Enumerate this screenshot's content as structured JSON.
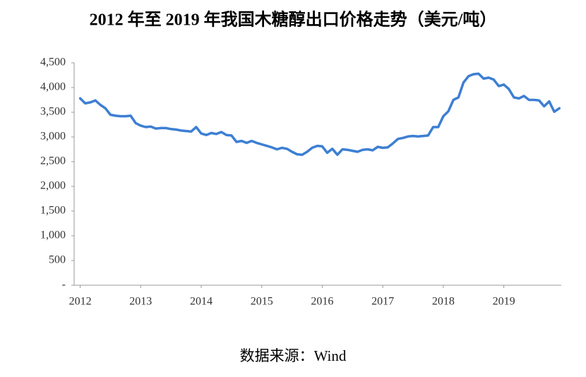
{
  "chart_data": {
    "type": "line",
    "title": "2012 年至 2019 年我国木糖醇出口价格走势（美元/吨）",
    "source": "数据来源：Wind",
    "x": [
      2012,
      2012.083,
      2012.167,
      2012.25,
      2012.333,
      2012.417,
      2012.5,
      2012.583,
      2012.667,
      2012.75,
      2012.833,
      2012.917,
      2013,
      2013.083,
      2013.167,
      2013.25,
      2013.333,
      2013.417,
      2013.5,
      2013.583,
      2013.667,
      2013.75,
      2013.833,
      2013.917,
      2014,
      2014.083,
      2014.167,
      2014.25,
      2014.333,
      2014.417,
      2014.5,
      2014.583,
      2014.667,
      2014.75,
      2014.833,
      2014.917,
      2015,
      2015.083,
      2015.167,
      2015.25,
      2015.333,
      2015.417,
      2015.5,
      2015.583,
      2015.667,
      2015.75,
      2015.833,
      2015.917,
      2016,
      2016.083,
      2016.167,
      2016.25,
      2016.333,
      2016.417,
      2016.5,
      2016.583,
      2016.667,
      2016.75,
      2016.833,
      2016.917,
      2017,
      2017.083,
      2017.167,
      2017.25,
      2017.333,
      2017.417,
      2017.5,
      2017.583,
      2017.667,
      2017.75,
      2017.833,
      2017.917,
      2018,
      2018.083,
      2018.167,
      2018.25,
      2018.333,
      2018.417,
      2018.5,
      2018.583,
      2018.667,
      2018.75,
      2018.833,
      2018.917,
      2019,
      2019.083,
      2019.167,
      2019.25,
      2019.333,
      2019.417,
      2019.5,
      2019.583,
      2019.667,
      2019.75,
      2019.833,
      2019.917
    ],
    "values": [
      3780,
      3680,
      3700,
      3740,
      3650,
      3580,
      3450,
      3430,
      3420,
      3420,
      3430,
      3280,
      3230,
      3200,
      3210,
      3170,
      3180,
      3180,
      3160,
      3150,
      3130,
      3120,
      3110,
      3200,
      3070,
      3040,
      3080,
      3060,
      3100,
      3040,
      3030,
      2900,
      2920,
      2880,
      2920,
      2880,
      2850,
      2820,
      2790,
      2750,
      2780,
      2760,
      2700,
      2650,
      2640,
      2700,
      2780,
      2820,
      2810,
      2680,
      2760,
      2640,
      2750,
      2740,
      2720,
      2700,
      2740,
      2750,
      2730,
      2800,
      2780,
      2790,
      2870,
      2960,
      2980,
      3010,
      3020,
      3010,
      3020,
      3030,
      3200,
      3200,
      3420,
      3520,
      3750,
      3800,
      4100,
      4230,
      4270,
      4280,
      4180,
      4200,
      4160,
      4030,
      4060,
      3970,
      3800,
      3780,
      3830,
      3750,
      3750,
      3740,
      3620,
      3720,
      3510,
      3580
    ],
    "color": "#3d7fd3",
    "xlim": [
      2011.9,
      2019.95
    ],
    "xticks": [
      2012,
      2013,
      2014,
      2015,
      2016,
      2017,
      2018,
      2019
    ],
    "ylim": [
      0,
      4500
    ],
    "yticks": [
      {
        "value": 0,
        "label": "-"
      },
      500,
      {
        "value": 1000,
        "label": "1,000"
      },
      {
        "value": 1500,
        "label": "1,500"
      },
      {
        "value": 2000,
        "label": "2,000"
      },
      {
        "value": 2500,
        "label": "2,500"
      },
      {
        "value": 3000,
        "label": "3,000"
      },
      {
        "value": 3500,
        "label": "3,500"
      },
      {
        "value": 4000,
        "label": "4,000"
      },
      {
        "value": 4500,
        "label": "4,500"
      }
    ],
    "grid": false
  }
}
